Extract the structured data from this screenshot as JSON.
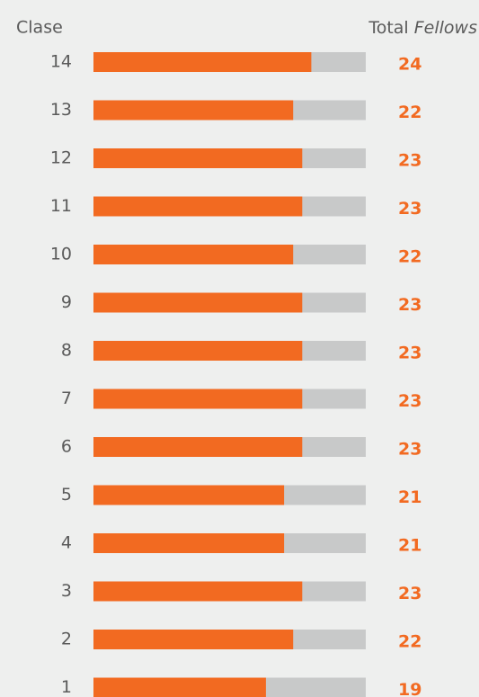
{
  "chart_data": {
    "type": "bar",
    "orientation": "horizontal",
    "category_header": "Clase",
    "value_header": "Total",
    "value_header_emphasis": "Fellows",
    "categories": [
      "14",
      "13",
      "12",
      "11",
      "10",
      "9",
      "8",
      "7",
      "6",
      "5",
      "4",
      "3",
      "2",
      "1"
    ],
    "values": [
      24,
      22,
      23,
      23,
      22,
      23,
      23,
      23,
      23,
      21,
      21,
      23,
      22,
      19
    ],
    "color": "#f26a21",
    "track_color": "#c8c9c9",
    "xlim": [
      0,
      30
    ]
  }
}
